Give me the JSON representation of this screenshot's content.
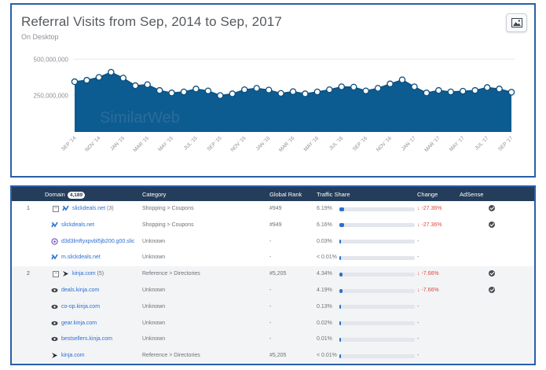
{
  "chart": {
    "title": "Referral Visits from Sep, 2014 to Sep, 2017",
    "subtitle": "On Desktop",
    "watermark": "SimilarWeb",
    "export_icon": "image-icon"
  },
  "chart_data": {
    "type": "area",
    "title": "Referral Visits from Sep, 2014 to Sep, 2017",
    "subtitle": "On Desktop",
    "y_ticks": [
      "500,000,000",
      "250,000,000"
    ],
    "ylim": [
      0,
      550000000
    ],
    "x_ticks": [
      "SEP '14",
      "NOV '14",
      "JAN '15",
      "MAR '15",
      "MAY '15",
      "JUL '15",
      "SEP '15",
      "NOV '15",
      "JAN '16",
      "MAR '16",
      "MAY '16",
      "JUL '16",
      "SEP '16",
      "NOV '16",
      "JAN '17",
      "MAR '17",
      "MAY '17",
      "JUL '17",
      "SEP '17"
    ],
    "x": [
      "2014-09",
      "2014-10",
      "2014-11",
      "2014-12",
      "2015-01",
      "2015-02",
      "2015-03",
      "2015-04",
      "2015-05",
      "2015-06",
      "2015-07",
      "2015-08",
      "2015-09",
      "2015-10",
      "2015-11",
      "2015-12",
      "2016-01",
      "2016-02",
      "2016-03",
      "2016-04",
      "2016-05",
      "2016-06",
      "2016-07",
      "2016-08",
      "2016-09",
      "2016-10",
      "2016-11",
      "2016-12",
      "2017-01",
      "2017-02",
      "2017-03",
      "2017-04",
      "2017-05",
      "2017-06",
      "2017-07",
      "2017-08",
      "2017-09"
    ],
    "values": [
      345000000,
      355000000,
      375000000,
      410000000,
      370000000,
      318000000,
      325000000,
      285000000,
      268000000,
      275000000,
      295000000,
      282000000,
      250000000,
      262000000,
      290000000,
      300000000,
      288000000,
      265000000,
      277000000,
      262000000,
      275000000,
      290000000,
      310000000,
      308000000,
      282000000,
      300000000,
      330000000,
      358000000,
      310000000,
      268000000,
      285000000,
      275000000,
      280000000,
      285000000,
      305000000,
      295000000,
      273000000
    ],
    "color": "#0d5c91",
    "grid": true,
    "legend": "none"
  },
  "table": {
    "headers": {
      "domain": "Domain",
      "domain_count": "4,189",
      "category": "Category",
      "global_rank": "Global Rank",
      "traffic_share": "Traffic Share",
      "change": "Change",
      "adsense": "AdSense"
    },
    "rows": [
      {
        "rank": "1",
        "toggle": "−",
        "domain": "slickdeals.net",
        "count": "(3)",
        "category": "Shopping > Coupons",
        "global_rank": "#949",
        "share": "6.19%",
        "share_value": 6.19,
        "change": "↓ -27.36%",
        "adsense": true,
        "icon": "slickdeals-icon",
        "kind": "group"
      },
      {
        "rank": "",
        "domain": "slickdeals.net",
        "category": "Shopping > Coupons",
        "global_rank": "#949",
        "share": "6.16%",
        "share_value": 6.16,
        "change": "↓ -27.36%",
        "adsense": true,
        "icon": "slickdeals-icon",
        "kind": "child"
      },
      {
        "rank": "",
        "domain": "d3d3lmfty​xpvbl5jb200.g00.slic",
        "category": "Unknown",
        "global_rank": "-",
        "share": "0.03%",
        "share_value": 0.03,
        "change": "-",
        "adsense": false,
        "icon": "globe-icon",
        "kind": "child"
      },
      {
        "rank": "",
        "domain": "m.slickdeals.net",
        "category": "Unknown",
        "global_rank": "-",
        "share": "< 0.01%",
        "share_value": 0.01,
        "change": "-",
        "adsense": false,
        "icon": "slickdeals-icon",
        "kind": "child"
      },
      {
        "rank": "2",
        "toggle": "−",
        "domain": "kinja.com",
        "count": "(5)",
        "category": "Reference > Directories",
        "global_rank": "#5,205",
        "share": "4.34%",
        "share_value": 4.34,
        "change": "↓ -7.66%",
        "adsense": true,
        "icon": "kinja-icon",
        "kind": "group"
      },
      {
        "rank": "",
        "domain": "deals.kinja.com",
        "category": "Unknown",
        "global_rank": "-",
        "share": "4.19%",
        "share_value": 4.19,
        "change": "↓ -7.66%",
        "adsense": true,
        "icon": "kinja-eye-icon",
        "kind": "child"
      },
      {
        "rank": "",
        "domain": "co-op.kinja.com",
        "category": "Unknown",
        "global_rank": "-",
        "share": "0.13%",
        "share_value": 0.13,
        "change": "-",
        "adsense": false,
        "icon": "kinja-eye-icon",
        "kind": "child"
      },
      {
        "rank": "",
        "domain": "gear.kinja.com",
        "category": "Unknown",
        "global_rank": "-",
        "share": "0.02%",
        "share_value": 0.02,
        "change": "-",
        "adsense": false,
        "icon": "kinja-eye-icon",
        "kind": "child"
      },
      {
        "rank": "",
        "domain": "bestsellers.kinja.com",
        "category": "Unknown",
        "global_rank": "-",
        "share": "0.01%",
        "share_value": 0.01,
        "change": "-",
        "adsense": false,
        "icon": "kinja-eye-icon",
        "kind": "child"
      },
      {
        "rank": "",
        "domain": "kinja.com",
        "category": "Reference > Directories",
        "global_rank": "#5,205",
        "share": "< 0.01%",
        "share_value": 0.01,
        "change": "-",
        "adsense": false,
        "icon": "kinja-icon",
        "kind": "child"
      }
    ]
  }
}
